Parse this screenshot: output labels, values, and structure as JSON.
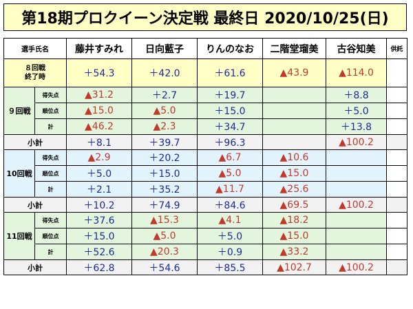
{
  "title": "第18期プロクイーン決定戦 最終日 2020/10/25(日)",
  "header": {
    "label": "選手氏名",
    "players": [
      "藤井すみれ",
      "日向藍子",
      "りんのなお",
      "二階堂瑠美",
      "古谷知美"
    ],
    "extra": "供託"
  },
  "start": {
    "label_line1": "８回戦",
    "label_line2": "終了時",
    "values": [
      "＋54.3",
      "＋42.0",
      "＋61.6",
      "▲43.9",
      "▲114.0"
    ]
  },
  "rounds": [
    {
      "label": "９回戦",
      "rows": [
        {
          "label": "得失点",
          "values": [
            "▲31.2",
            "＋2.7",
            "＋19.7",
            "",
            "＋8.8"
          ]
        },
        {
          "label": "順位点",
          "values": [
            "▲15.0",
            "▲5.0",
            "＋15.0",
            "",
            "＋5.0"
          ]
        },
        {
          "label": "計",
          "values": [
            "▲46.2",
            "▲2.3",
            "＋34.7",
            "",
            "＋13.8"
          ]
        }
      ],
      "subtotal": {
        "label": "小計",
        "values": [
          "＋8.1",
          "＋39.7",
          "＋96.3",
          "",
          "▲100.2"
        ]
      }
    },
    {
      "label": "10回戦",
      "rows": [
        {
          "label": "得失点",
          "values": [
            "▲2.9",
            "＋20.2",
            "▲6.7",
            "▲10.6",
            ""
          ]
        },
        {
          "label": "順位点",
          "values": [
            "＋5.0",
            "＋15.0",
            "▲5.0",
            "▲15.0",
            ""
          ]
        },
        {
          "label": "計",
          "values": [
            "＋2.1",
            "＋35.2",
            "▲11.7",
            "▲25.6",
            ""
          ]
        }
      ],
      "subtotal": {
        "label": "小計",
        "values": [
          "＋10.2",
          "＋74.9",
          "＋84.6",
          "▲69.5",
          "▲100.2"
        ]
      }
    },
    {
      "label": "11回戦",
      "rows": [
        {
          "label": "得失点",
          "values": [
            "＋37.6",
            "▲15.3",
            "▲4.1",
            "▲18.2",
            ""
          ]
        },
        {
          "label": "順位点",
          "values": [
            "＋15.0",
            "▲5.0",
            "＋5.0",
            "▲15.0",
            ""
          ]
        },
        {
          "label": "計",
          "values": [
            "＋52.6",
            "▲20.3",
            "＋0.9",
            "▲33.2",
            ""
          ]
        }
      ],
      "subtotal": {
        "label": "小計",
        "values": [
          "＋62.8",
          "＋54.6",
          "＋85.5",
          "▲102.7",
          "▲100.2"
        ]
      }
    }
  ],
  "colors": {
    "positive": "#1d2a9a",
    "negative": "#c0392b",
    "header_yellow": "#ffffc6",
    "round_green": "#e3f5dc",
    "round_blue": "#e3f3fc",
    "subtotal_gray": "#f2f2f2"
  }
}
